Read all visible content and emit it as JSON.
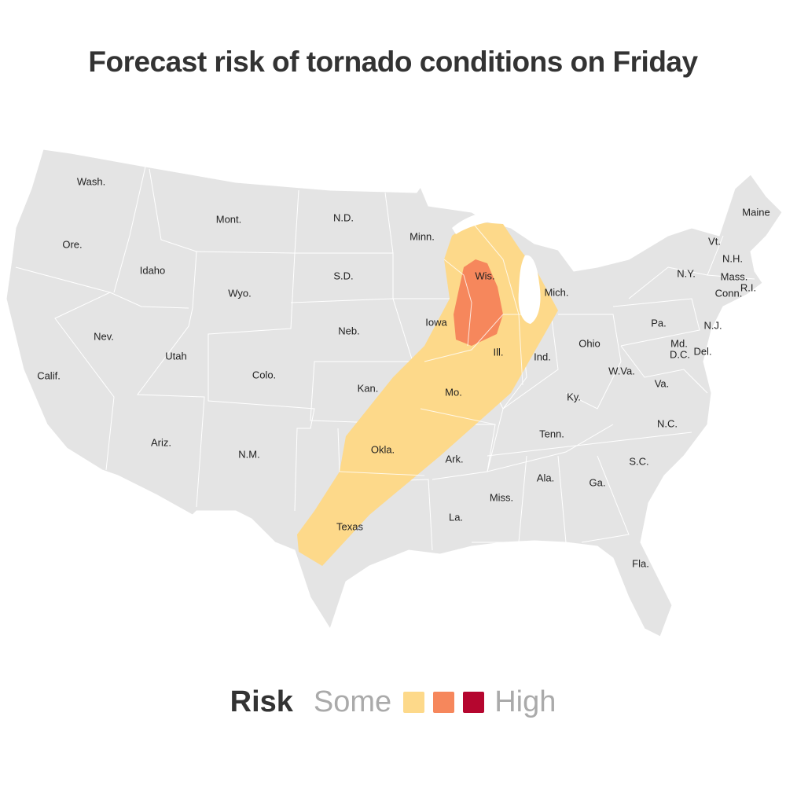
{
  "title": "Forecast risk of tornado conditions on Friday",
  "colors": {
    "land": "#e4e4e4",
    "border": "#ffffff",
    "water": "#ffffff",
    "some": "#fdd98a",
    "moderate": "#f6875c",
    "high": "#b5062f"
  },
  "legend": {
    "label": "Risk",
    "low_end": "Some",
    "high_end": "High",
    "levels": [
      "some",
      "moderate",
      "high"
    ]
  },
  "states": [
    "Wash.",
    "Ore.",
    "Calif.",
    "Idaho",
    "Nev.",
    "Mont.",
    "Wyo.",
    "Utah",
    "Ariz.",
    "Colo.",
    "N.M.",
    "N.D.",
    "S.D.",
    "Neb.",
    "Kan.",
    "Okla.",
    "Texas",
    "Minn.",
    "Iowa",
    "Mo.",
    "Ark.",
    "La.",
    "Wis.",
    "Ill.",
    "Mich.",
    "Ind.",
    "Ohio",
    "Ky.",
    "Tenn.",
    "Miss.",
    "Ala.",
    "Ga.",
    "Fla.",
    "S.C.",
    "N.C.",
    "Va.",
    "W.Va.",
    "Md.",
    "D.C.",
    "Del.",
    "Pa.",
    "N.J.",
    "N.Y.",
    "Vt.",
    "N.H.",
    "Maine",
    "Mass.",
    "Conn.",
    "R.I."
  ]
}
